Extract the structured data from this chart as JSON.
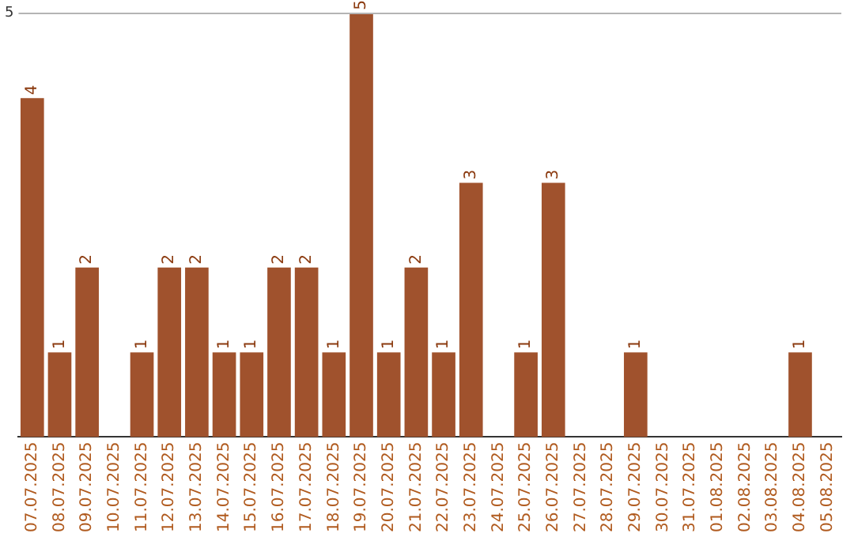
{
  "chart_data": {
    "type": "bar",
    "categories": [
      "07.07.2025",
      "08.07.2025",
      "09.07.2025",
      "10.07.2025",
      "11.07.2025",
      "12.07.2025",
      "13.07.2025",
      "14.07.2025",
      "15.07.2025",
      "16.07.2025",
      "17.07.2025",
      "18.07.2025",
      "19.07.2025",
      "20.07.2025",
      "21.07.2025",
      "22.07.2025",
      "23.07.2025",
      "24.07.2025",
      "25.07.2025",
      "26.07.2025",
      "27.07.2025",
      "28.07.2025",
      "29.07.2025",
      "30.07.2025",
      "31.07.2025",
      "01.08.2025",
      "02.08.2025",
      "03.08.2025",
      "04.08.2025",
      "05.08.2025"
    ],
    "values": [
      4,
      1,
      2,
      0,
      1,
      2,
      2,
      1,
      1,
      2,
      2,
      1,
      5,
      1,
      2,
      1,
      3,
      0,
      1,
      3,
      0,
      0,
      1,
      0,
      0,
      0,
      0,
      0,
      1,
      0
    ],
    "value_labels": [
      "4",
      "1",
      "2",
      null,
      "1",
      "2",
      "2",
      "1",
      "1",
      "2",
      "2",
      "1",
      "5",
      "1",
      "2",
      "1",
      "3",
      null,
      "1",
      "3",
      null,
      null,
      "1",
      null,
      null,
      null,
      null,
      null,
      "1",
      null
    ],
    "color": "#a0522d",
    "ylim": [
      0,
      5
    ],
    "yticks": [
      5
    ],
    "ref_lines": [
      {
        "axis": "y",
        "value": 5,
        "color": "#b4b4b4"
      }
    ],
    "legend": false
  }
}
